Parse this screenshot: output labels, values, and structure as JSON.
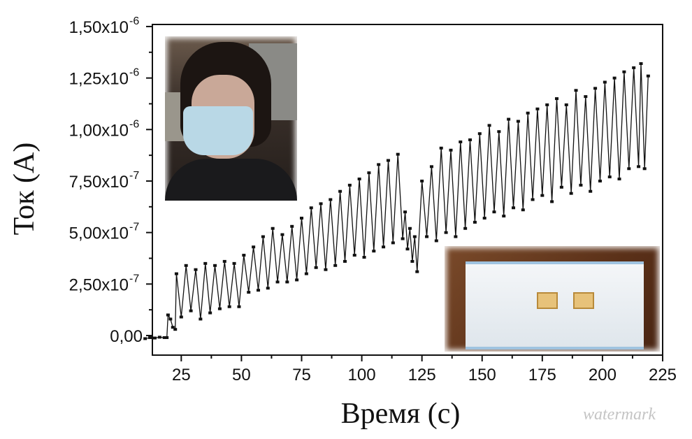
{
  "chart_data": {
    "type": "line",
    "xlabel": "Время (с)",
    "ylabel": "Ток (А)",
    "xlim": [
      13,
      225
    ],
    "ylim": [
      -9.5e-08,
      1.51e-06
    ],
    "x_ticks": [
      "25",
      "50",
      "75",
      "100",
      "125",
      "150",
      "175",
      "200",
      "225"
    ],
    "y_ticks": [
      {
        "value": 0,
        "mantissa": "0,00",
        "exp": ""
      },
      {
        "value": 2.5e-07,
        "mantissa": "2,50x10",
        "exp": "-7"
      },
      {
        "value": 5e-07,
        "mantissa": "5,00x10",
        "exp": "-7"
      },
      {
        "value": 7.5e-07,
        "mantissa": "7,50x10",
        "exp": "-7"
      },
      {
        "value": 1e-06,
        "mantissa": "1,00x10",
        "exp": "-6"
      },
      {
        "value": 1.25e-06,
        "mantissa": "1,25x10",
        "exp": "-6"
      },
      {
        "value": 1.5e-06,
        "mantissa": "1,50x10",
        "exp": "-6"
      }
    ],
    "grid": false,
    "series": [
      {
        "color": "#111111",
        "marker": "square",
        "points": [
          [
            10,
            -1.5e-08
          ],
          [
            12,
            -1e-08
          ],
          [
            14,
            -1.2e-08
          ],
          [
            16,
            -8e-09
          ],
          [
            18,
            -1e-08
          ],
          [
            19,
            -1e-08
          ],
          [
            19.5,
            1e-07
          ],
          [
            20.5,
            8e-08
          ],
          [
            21.5,
            4e-08
          ],
          [
            22.5,
            3e-08
          ],
          [
            23,
            3e-07
          ],
          [
            25,
            9e-08
          ],
          [
            27,
            3.4e-07
          ],
          [
            29,
            1.2e-07
          ],
          [
            31,
            3.2e-07
          ],
          [
            33,
            8e-08
          ],
          [
            35,
            3.5e-07
          ],
          [
            37,
            1.1e-07
          ],
          [
            39,
            3.4e-07
          ],
          [
            41,
            1.3e-07
          ],
          [
            43,
            3.6e-07
          ],
          [
            45,
            1.4e-07
          ],
          [
            47,
            3.5e-07
          ],
          [
            49,
            1.4e-07
          ],
          [
            51,
            3.9e-07
          ],
          [
            53,
            2.1e-07
          ],
          [
            55,
            4.3e-07
          ],
          [
            57,
            2.2e-07
          ],
          [
            59,
            4.8e-07
          ],
          [
            61,
            2.3e-07
          ],
          [
            63,
            5.2e-07
          ],
          [
            65,
            2.6e-07
          ],
          [
            67,
            4.9e-07
          ],
          [
            69,
            2.6e-07
          ],
          [
            71,
            5.3e-07
          ],
          [
            73,
            2.7e-07
          ],
          [
            75,
            5.7e-07
          ],
          [
            77,
            3e-07
          ],
          [
            79,
            6.2e-07
          ],
          [
            81,
            3.3e-07
          ],
          [
            83,
            6.4e-07
          ],
          [
            85,
            3.2e-07
          ],
          [
            87,
            6.6e-07
          ],
          [
            89,
            3.4e-07
          ],
          [
            91,
            7e-07
          ],
          [
            93,
            3.6e-07
          ],
          [
            95,
            7.3e-07
          ],
          [
            97,
            3.9e-07
          ],
          [
            99,
            7.6e-07
          ],
          [
            101,
            3.8e-07
          ],
          [
            103,
            7.9e-07
          ],
          [
            105,
            4.1e-07
          ],
          [
            107,
            8.3e-07
          ],
          [
            109,
            4.3e-07
          ],
          [
            111,
            8.5e-07
          ],
          [
            113,
            4.5e-07
          ],
          [
            115,
            8.8e-07
          ],
          [
            117,
            4.7e-07
          ],
          [
            118,
            6e-07
          ],
          [
            119,
            4.2e-07
          ],
          [
            120,
            5.2e-07
          ],
          [
            121,
            3.6e-07
          ],
          [
            122,
            4.8e-07
          ],
          [
            123,
            3.1e-07
          ],
          [
            125,
            7.5e-07
          ],
          [
            127,
            4.8e-07
          ],
          [
            129,
            8.2e-07
          ],
          [
            131,
            4.6e-07
          ],
          [
            133,
            9.1e-07
          ],
          [
            135,
            5e-07
          ],
          [
            137,
            9e-07
          ],
          [
            139,
            4.8e-07
          ],
          [
            141,
            9.4e-07
          ],
          [
            143,
            5.2e-07
          ],
          [
            145,
            9.5e-07
          ],
          [
            147,
            5.5e-07
          ],
          [
            149,
            9.8e-07
          ],
          [
            151,
            5.7e-07
          ],
          [
            153,
            1.02e-06
          ],
          [
            155,
            6e-07
          ],
          [
            157,
            9.9e-07
          ],
          [
            159,
            5.8e-07
          ],
          [
            161,
            1.05e-06
          ],
          [
            163,
            6.2e-07
          ],
          [
            165,
            1.04e-06
          ],
          [
            167,
            6.1e-07
          ],
          [
            169,
            1.08e-06
          ],
          [
            171,
            6.6e-07
          ],
          [
            173,
            1.1e-06
          ],
          [
            175,
            6.8e-07
          ],
          [
            177,
            1.12e-06
          ],
          [
            179,
            6.5e-07
          ],
          [
            181,
            1.15e-06
          ],
          [
            183,
            7.2e-07
          ],
          [
            185,
            1.12e-06
          ],
          [
            187,
            6.9e-07
          ],
          [
            189,
            1.19e-06
          ],
          [
            191,
            7.3e-07
          ],
          [
            193,
            1.16e-06
          ],
          [
            195,
            7e-07
          ],
          [
            197,
            1.2e-06
          ],
          [
            199,
            7.5e-07
          ],
          [
            201,
            1.23e-06
          ],
          [
            203,
            7.7e-07
          ],
          [
            205,
            1.25e-06
          ],
          [
            207,
            7.6e-07
          ],
          [
            209,
            1.28e-06
          ],
          [
            211,
            8.1e-07
          ],
          [
            213,
            1.3e-06
          ],
          [
            215,
            8.2e-07
          ],
          [
            216,
            1.32e-06
          ],
          [
            217.5,
            8.1e-07
          ],
          [
            219,
            1.26e-06
          ]
        ]
      }
    ],
    "insets": [
      "photo of person wearing sensor face mask",
      "photo of face mask with two sensors"
    ]
  },
  "watermark": "watermark"
}
